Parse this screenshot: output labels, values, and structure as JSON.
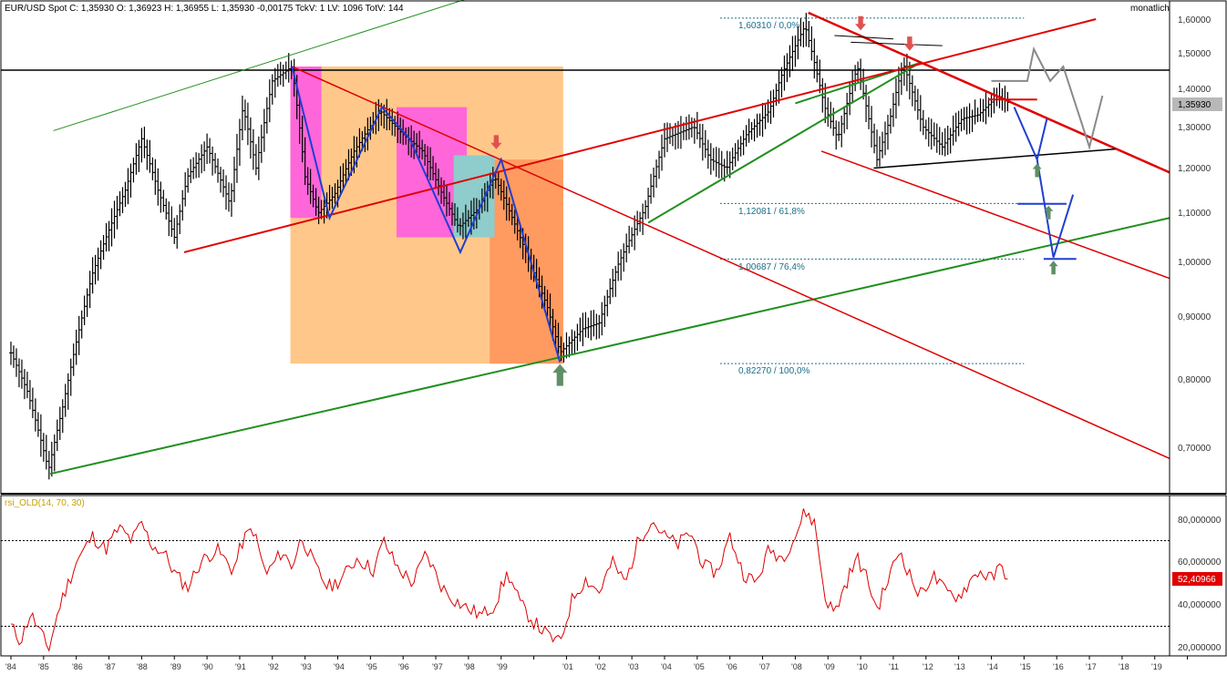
{
  "header": {
    "info": "EUR/USD Spot C: 1,35930 O: 1,36923 H: 1,36955 L: 1,35930 -0,00175 TckV: 1 LV: 1096 TotV: 144",
    "period": "monatlich"
  },
  "colors": {
    "price": "#000000",
    "red_trend": "#e00000",
    "green_trend": "#1f8f1f",
    "blue_pattern": "#1f3fd0",
    "rsi": "#dd0000",
    "fib": "#1a6e8a",
    "arrow_up": "#5f8f66",
    "arrow_down": "#e05050",
    "box_orange": "#ffc88a",
    "box_dark_orange": "#ff9a60",
    "box_magenta": "#ff66d9",
    "box_teal": "#8fcccc",
    "rsi_badge": "#e00000"
  },
  "chart_data": [
    {
      "type": "line",
      "title": "",
      "price_scale": "log",
      "ylim": [
        0.64,
        1.62
      ],
      "y_ticks": [
        "1,60000",
        "1,50000",
        "1,40000",
        "1,30000",
        "1,20000",
        "1,10000",
        "1,00000",
        "0,90000",
        "0,80000",
        "0,70000"
      ],
      "y_tick_values": [
        1.6,
        1.5,
        1.4,
        1.3,
        1.2,
        1.1,
        1.0,
        0.9,
        0.8,
        0.7
      ],
      "x_tick_labels": [
        "'84",
        "'85",
        "'86",
        "'87",
        "'88",
        "'89",
        "'90",
        "'91",
        "'92",
        "'93",
        "'94",
        "'95",
        "'96",
        "'97",
        "'98",
        "'99",
        "'01",
        "'02",
        "'03",
        "'04",
        "'05",
        "'06",
        "'07",
        "'08",
        "'09",
        "'10",
        "'11",
        "'12",
        "'13",
        "'14",
        "'15",
        "'16",
        "'17",
        "'18",
        "'19"
      ],
      "last_value_label": "1,35930",
      "series": [
        {
          "x": [
            1984.0,
            1984.5,
            1985.15,
            1985.6,
            1986.5,
            1987.5,
            1988.0,
            1988.5,
            1989.0,
            1989.4,
            1990.0,
            1990.7,
            1991.1,
            1991.5,
            1992.0,
            1992.6,
            1993.0,
            1993.4,
            1993.9,
            1994.5,
            1995.3,
            1996.0,
            1996.6,
            1997.2,
            1997.7,
            1998.3,
            1998.8,
            1999.4,
            2000.0,
            2000.4,
            2000.8,
            2001.5,
            2002.0,
            2002.6,
            2003.4,
            2004.0,
            2004.9,
            2005.4,
            2005.9,
            2006.5,
            2007.2,
            2007.6,
            2008.3,
            2008.9,
            2009.3,
            2009.9,
            2010.5,
            2010.9,
            2011.3,
            2011.9,
            2012.5,
            2013.1,
            2013.6,
            2014.2,
            2014.55
          ],
          "y": [
            0.84,
            0.78,
            0.67,
            0.76,
            0.98,
            1.15,
            1.27,
            1.15,
            1.05,
            1.18,
            1.25,
            1.12,
            1.35,
            1.2,
            1.42,
            1.46,
            1.18,
            1.1,
            1.14,
            1.24,
            1.34,
            1.28,
            1.24,
            1.14,
            1.07,
            1.11,
            1.18,
            1.08,
            0.98,
            0.92,
            0.84,
            0.88,
            0.89,
            1.0,
            1.11,
            1.27,
            1.3,
            1.22,
            1.2,
            1.28,
            1.34,
            1.44,
            1.58,
            1.35,
            1.27,
            1.46,
            1.22,
            1.32,
            1.47,
            1.3,
            1.25,
            1.32,
            1.33,
            1.38,
            1.3593
          ]
        }
      ],
      "annotations": {
        "fib_levels": [
          {
            "label": "1,60310 / 0,0%",
            "value": 1.6031
          },
          {
            "label": "1,12081 / 61,8%",
            "value": 1.12081
          },
          {
            "label": "1,00687 / 76,4%",
            "value": 1.00687
          },
          {
            "label": "0,82270 / 100,0%",
            "value": 0.8227
          }
        ],
        "horizontal_line": 1.45
      }
    },
    {
      "type": "line",
      "title": "rsi_OLD(14, 70, 30)",
      "ylim": [
        15,
        88
      ],
      "y_ticks": [
        "80,000000",
        "60,000000",
        "40,000000",
        "20,000000"
      ],
      "y_tick_values": [
        80,
        60,
        40,
        20
      ],
      "levels": [
        70,
        30
      ],
      "last_value_label": "52,40966",
      "series": [
        {
          "x": [
            1984.0,
            1984.3,
            1984.6,
            1985.0,
            1985.15,
            1985.5,
            1986.0,
            1986.5,
            1986.9,
            1987.3,
            1987.7,
            1988.0,
            1988.3,
            1988.7,
            1989.0,
            1989.4,
            1989.8,
            1990.3,
            1990.8,
            1991.1,
            1991.4,
            1991.8,
            1992.3,
            1992.6,
            1992.9,
            1993.3,
            1993.7,
            1994.1,
            1994.6,
            1995.1,
            1995.4,
            1995.8,
            1996.3,
            1996.7,
            1997.2,
            1997.6,
            1998.0,
            1998.4,
            1998.8,
            1999.2,
            1999.6,
            2000.0,
            2000.4,
            2000.8,
            2001.2,
            2001.6,
            2002.0,
            2002.4,
            2002.8,
            2003.2,
            2003.6,
            2004.0,
            2004.4,
            2004.8,
            2005.2,
            2005.6,
            2006.0,
            2006.4,
            2006.8,
            2007.2,
            2007.6,
            2008.0,
            2008.3,
            2008.6,
            2008.9,
            2009.2,
            2009.6,
            2009.9,
            2010.2,
            2010.5,
            2010.8,
            2011.2,
            2011.5,
            2011.8,
            2012.2,
            2012.6,
            2013.0,
            2013.3,
            2013.6,
            2014.0,
            2014.3,
            2014.55
          ],
          "y": [
            30,
            23,
            36,
            24,
            19,
            40,
            60,
            72,
            66,
            76,
            70,
            78,
            68,
            64,
            55,
            48,
            60,
            66,
            56,
            70,
            76,
            54,
            65,
            58,
            72,
            58,
            48,
            52,
            62,
            56,
            70,
            58,
            50,
            64,
            48,
            42,
            38,
            35,
            40,
            55,
            40,
            32,
            26,
            22,
            44,
            52,
            46,
            60,
            50,
            70,
            80,
            72,
            68,
            74,
            58,
            55,
            72,
            55,
            50,
            66,
            62,
            72,
            84,
            78,
            44,
            36,
            52,
            62,
            52,
            38,
            50,
            66,
            54,
            44,
            54,
            46,
            44,
            50,
            56,
            52,
            58,
            52.4
          ]
        }
      ]
    }
  ]
}
